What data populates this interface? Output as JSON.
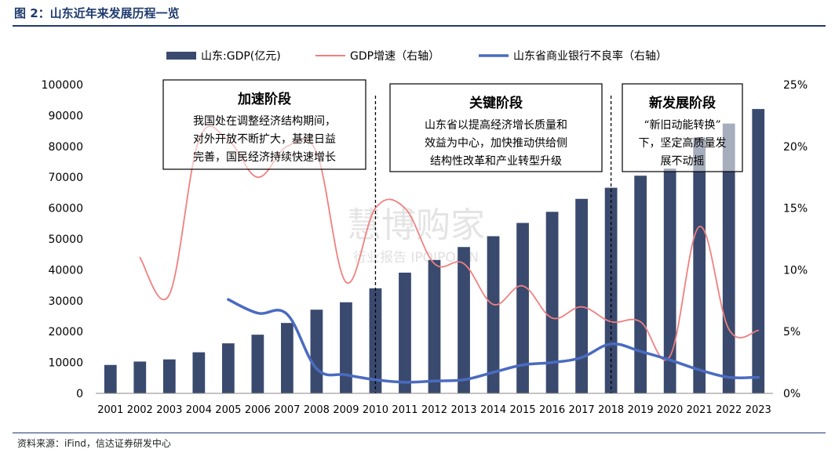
{
  "figure": {
    "title": "图 2：山东近年来发展历程一览",
    "source": "资料来源：iFind，信达证券研发中心",
    "watermark_line1": "慧博购家",
    "watermark_line2": "行业报告 IPOIPO.CN"
  },
  "chart_data": {
    "type": "bar",
    "categories": [
      "2001",
      "2002",
      "2003",
      "2004",
      "2005",
      "2006",
      "2007",
      "2008",
      "2009",
      "2010",
      "2011",
      "2012",
      "2013",
      "2014",
      "2015",
      "2016",
      "2017",
      "2018",
      "2019",
      "2020",
      "2021",
      "2022",
      "2023"
    ],
    "left_axis": {
      "min": 0,
      "max": 100000,
      "ticks": [
        "0",
        "10000",
        "20000",
        "30000",
        "40000",
        "50000",
        "60000",
        "70000",
        "80000",
        "90000",
        "100000"
      ]
    },
    "right_axis": {
      "min": 0,
      "max": 25,
      "ticks": [
        "0%",
        "5%",
        "10%",
        "15%",
        "20%",
        "25%"
      ]
    },
    "series": [
      {
        "name": "山东:GDP(亿元)",
        "kind": "bar",
        "axis": "left",
        "color": "#3a4a6e",
        "values": [
          9200,
          10300,
          11000,
          13300,
          16200,
          19000,
          22800,
          27100,
          29500,
          34000,
          39100,
          43200,
          47400,
          50900,
          55200,
          58800,
          63000,
          66600,
          70500,
          72800,
          82900,
          87400,
          92100
        ]
      },
      {
        "name": "GDP增速（右轴）",
        "kind": "line",
        "axis": "right",
        "color": "#f08080",
        "values": [
          null,
          11.0,
          8.0,
          20.5,
          20.5,
          17.5,
          20.0,
          19.5,
          9.0,
          15.0,
          15.0,
          10.5,
          10.5,
          7.2,
          8.7,
          6.1,
          7.0,
          5.8,
          5.8,
          3.0,
          13.5,
          5.2,
          5.1
        ]
      },
      {
        "name": "山东省商业银行不良率（右轴）",
        "kind": "line",
        "axis": "right",
        "color": "#4a6bc0",
        "values": [
          null,
          null,
          null,
          null,
          7.6,
          6.5,
          6.4,
          2.0,
          1.5,
          1.1,
          0.9,
          1.0,
          1.1,
          1.7,
          2.3,
          2.5,
          2.9,
          4.0,
          3.4,
          2.7,
          1.9,
          1.3,
          1.3
        ]
      }
    ],
    "phase_dividers": [
      "2010",
      "2018"
    ],
    "annotations": [
      {
        "title": "加速阶段",
        "lines": [
          "我国处在调整经济结构期间，",
          "对外开放不断扩大，基建日益",
          "完善，国民经济持续快速增长"
        ]
      },
      {
        "title": "关键阶段",
        "lines": [
          "山东省以提高经济增长质量和",
          "效益为中心，加快推动供给侧",
          "结构性改革和产业转型升级"
        ]
      },
      {
        "title": "新发展阶段",
        "lines": [
          "“新旧动能转换”",
          "下，坚定高质量发",
          "展不动摇"
        ]
      }
    ]
  }
}
